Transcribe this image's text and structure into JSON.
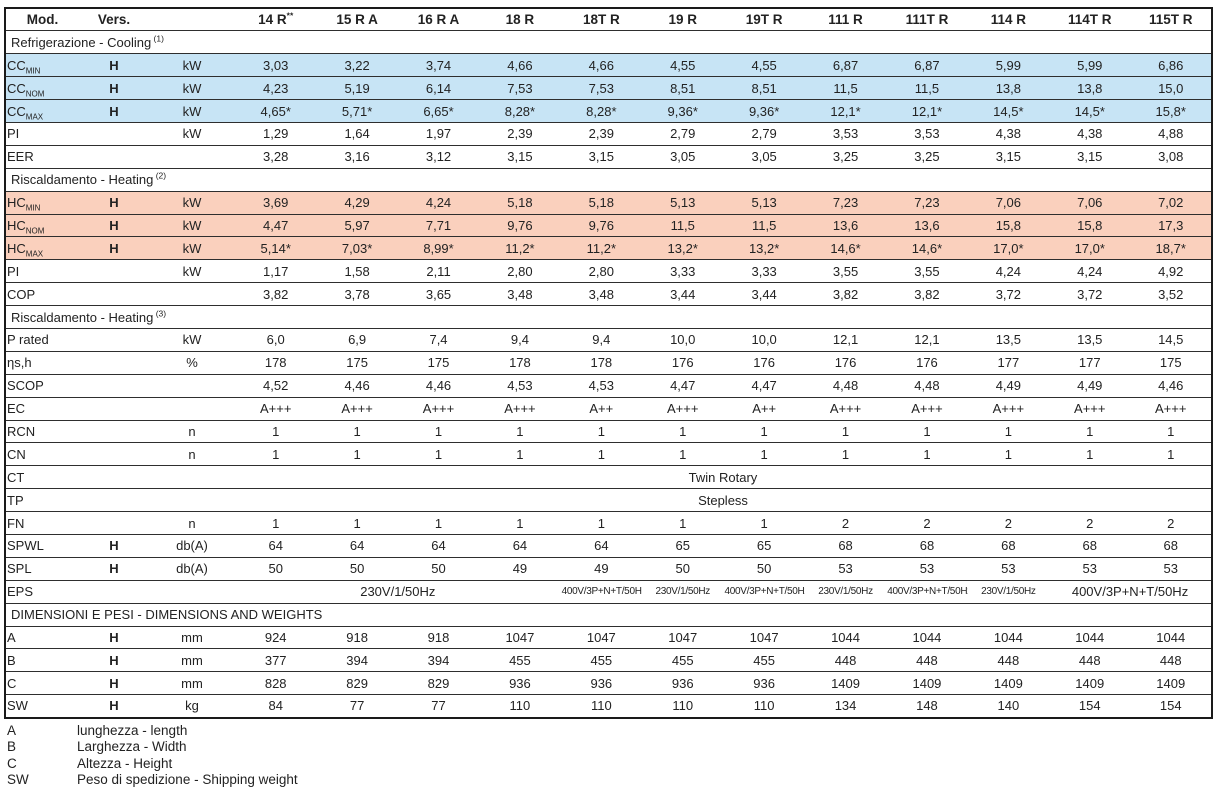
{
  "table": {
    "header": {
      "mod": "Mod.",
      "vers": "Vers.",
      "unit": ""
    },
    "models": [
      {
        "label": "14 R",
        "sup": "**"
      },
      {
        "label": "15 R A"
      },
      {
        "label": "16 R A"
      },
      {
        "label": "18 R"
      },
      {
        "label": "18T R"
      },
      {
        "label": "19 R"
      },
      {
        "label": "19T R"
      },
      {
        "label": "111 R"
      },
      {
        "label": "111T R"
      },
      {
        "label": "114 R"
      },
      {
        "label": "114T R"
      },
      {
        "label": "115T R"
      }
    ],
    "sections": [
      {
        "title": "Refrigerazione - Cooling",
        "sup": "(1)",
        "rows": [
          {
            "type": "data",
            "label": "CC",
            "sub": "MIN",
            "vers": "H",
            "unit": "kW",
            "bg": "blue",
            "values": [
              "3,03",
              "3,22",
              "3,74",
              "4,66",
              "4,66",
              "4,55",
              "4,55",
              "6,87",
              "6,87",
              "5,99",
              "5,99",
              "6,86"
            ]
          },
          {
            "type": "data",
            "label": "CC",
            "sub": "NOM",
            "vers": "H",
            "unit": "kW",
            "bg": "blue",
            "values": [
              "4,23",
              "5,19",
              "6,14",
              "7,53",
              "7,53",
              "8,51",
              "8,51",
              "11,5",
              "11,5",
              "13,8",
              "13,8",
              "15,0"
            ]
          },
          {
            "type": "data",
            "label": "CC",
            "sub": "MAX",
            "vers": "H",
            "unit": "kW",
            "bg": "blue",
            "values": [
              "4,65*",
              "5,71*",
              "6,65*",
              "8,28*",
              "8,28*",
              "9,36*",
              "9,36*",
              "12,1*",
              "12,1*",
              "14,5*",
              "14,5*",
              "15,8*"
            ]
          },
          {
            "type": "data",
            "label": "PI",
            "unit": "kW",
            "values": [
              "1,29",
              "1,64",
              "1,97",
              "2,39",
              "2,39",
              "2,79",
              "2,79",
              "3,53",
              "3,53",
              "4,38",
              "4,38",
              "4,88"
            ]
          },
          {
            "type": "data",
            "label": "EER",
            "values": [
              "3,28",
              "3,16",
              "3,12",
              "3,15",
              "3,15",
              "3,05",
              "3,05",
              "3,25",
              "3,25",
              "3,15",
              "3,15",
              "3,08"
            ]
          }
        ]
      },
      {
        "title": "Riscaldamento - Heating",
        "sup": "(2)",
        "rows": [
          {
            "type": "data",
            "label": "HC",
            "sub": "MIN",
            "vers": "H",
            "unit": "kW",
            "bg": "red",
            "values": [
              "3,69",
              "4,29",
              "4,24",
              "5,18",
              "5,18",
              "5,13",
              "5,13",
              "7,23",
              "7,23",
              "7,06",
              "7,06",
              "7,02"
            ]
          },
          {
            "type": "data",
            "label": "HC",
            "sub": "NOM",
            "vers": "H",
            "unit": "kW",
            "bg": "red",
            "values": [
              "4,47",
              "5,97",
              "7,71",
              "9,76",
              "9,76",
              "11,5",
              "11,5",
              "13,6",
              "13,6",
              "15,8",
              "15,8",
              "17,3"
            ]
          },
          {
            "type": "data",
            "label": "HC",
            "sub": "MAX",
            "vers": "H",
            "unit": "kW",
            "bg": "red",
            "values": [
              "5,14*",
              "7,03*",
              "8,99*",
              "11,2*",
              "11,2*",
              "13,2*",
              "13,2*",
              "14,6*",
              "14,6*",
              "17,0*",
              "17,0*",
              "18,7*"
            ]
          },
          {
            "type": "data",
            "label": "PI",
            "unit": "kW",
            "values": [
              "1,17",
              "1,58",
              "2,11",
              "2,80",
              "2,80",
              "3,33",
              "3,33",
              "3,55",
              "3,55",
              "4,24",
              "4,24",
              "4,92"
            ]
          },
          {
            "type": "data",
            "label": "COP",
            "values": [
              "3,82",
              "3,78",
              "3,65",
              "3,48",
              "3,48",
              "3,44",
              "3,44",
              "3,82",
              "3,82",
              "3,72",
              "3,72",
              "3,52"
            ]
          }
        ]
      },
      {
        "title": "Riscaldamento - Heating",
        "sup": "(3)",
        "rows": [
          {
            "type": "data",
            "label": "P rated",
            "unit": "kW",
            "values": [
              "6,0",
              "6,9",
              "7,4",
              "9,4",
              "9,4",
              "10,0",
              "10,0",
              "12,1",
              "12,1",
              "13,5",
              "13,5",
              "14,5"
            ]
          },
          {
            "type": "data",
            "label": "ηs,h",
            "unit": "%",
            "values": [
              "178",
              "175",
              "175",
              "178",
              "178",
              "176",
              "176",
              "176",
              "176",
              "177",
              "177",
              "175"
            ]
          },
          {
            "type": "data",
            "label": "SCOP",
            "values": [
              "4,52",
              "4,46",
              "4,46",
              "4,53",
              "4,53",
              "4,47",
              "4,47",
              "4,48",
              "4,48",
              "4,49",
              "4,49",
              "4,46"
            ]
          },
          {
            "type": "data",
            "label": "EC",
            "values": [
              "A+++",
              "A+++",
              "A+++",
              "A+++",
              "A++",
              "A+++",
              "A++",
              "A+++",
              "A+++",
              "A+++",
              "A+++",
              "A+++"
            ]
          },
          {
            "type": "data",
            "label": "RCN",
            "unit": "n",
            "values": [
              "1",
              "1",
              "1",
              "1",
              "1",
              "1",
              "1",
              "1",
              "1",
              "1",
              "1",
              "1"
            ]
          },
          {
            "type": "data",
            "label": "CN",
            "unit": "n",
            "values": [
              "1",
              "1",
              "1",
              "1",
              "1",
              "1",
              "1",
              "1",
              "1",
              "1",
              "1",
              "1"
            ]
          },
          {
            "type": "span",
            "label": "CT",
            "text": "Twin Rotary"
          },
          {
            "type": "span",
            "label": "TP",
            "text": "Stepless"
          },
          {
            "type": "data",
            "label": "FN",
            "unit": "n",
            "values": [
              "1",
              "1",
              "1",
              "1",
              "1",
              "1",
              "1",
              "2",
              "2",
              "2",
              "2",
              "2"
            ]
          },
          {
            "type": "data",
            "label": "SPWL",
            "vers": "H",
            "unit": "db(A)",
            "values": [
              "64",
              "64",
              "64",
              "64",
              "64",
              "65",
              "65",
              "68",
              "68",
              "68",
              "68",
              "68"
            ]
          },
          {
            "type": "data",
            "label": "SPL",
            "vers": "H",
            "unit": "db(A)",
            "values": [
              "50",
              "50",
              "50",
              "49",
              "49",
              "50",
              "50",
              "53",
              "53",
              "53",
              "53",
              "53"
            ]
          },
          {
            "type": "multi",
            "label": "EPS",
            "cells": [
              {
                "text": "230V/1/50Hz",
                "span": 4
              },
              {
                "text": "400V/3P+N+T/50Hz",
                "span": 1,
                "small": true
              },
              {
                "text": "230V/1/50Hz",
                "span": 1,
                "small": true
              },
              {
                "text": "400V/3P+N+T/50Hz",
                "span": 1,
                "small": true
              },
              {
                "text": "230V/1/50Hz",
                "span": 1,
                "small": true
              },
              {
                "text": "400V/3P+N+T/50Hz",
                "span": 1,
                "small": true
              },
              {
                "text": "230V/1/50Hz",
                "span": 1,
                "small": true
              },
              {
                "text": "400V/3P+N+T/50Hz",
                "span": 2
              }
            ]
          }
        ]
      },
      {
        "title": "DIMENSIONI E PESI - DIMENSIONS AND WEIGHTS",
        "rows": [
          {
            "type": "data",
            "label": "A",
            "vers": "H",
            "unit": "mm",
            "values": [
              "924",
              "918",
              "918",
              "1047",
              "1047",
              "1047",
              "1047",
              "1044",
              "1044",
              "1044",
              "1044",
              "1044"
            ]
          },
          {
            "type": "data",
            "label": "B",
            "vers": "H",
            "unit": "mm",
            "values": [
              "377",
              "394",
              "394",
              "455",
              "455",
              "455",
              "455",
              "448",
              "448",
              "448",
              "448",
              "448"
            ]
          },
          {
            "type": "data",
            "label": "C",
            "vers": "H",
            "unit": "mm",
            "values": [
              "828",
              "829",
              "829",
              "936",
              "936",
              "936",
              "936",
              "1409",
              "1409",
              "1409",
              "1409",
              "1409"
            ]
          },
          {
            "type": "data",
            "label": "SW",
            "vers": "H",
            "unit": "kg",
            "values": [
              "84",
              "77",
              "77",
              "110",
              "110",
              "110",
              "110",
              "134",
              "148",
              "140",
              "154",
              "154"
            ]
          }
        ]
      }
    ]
  },
  "legend": {
    "items": [
      {
        "key": "A",
        "text": "lunghezza - length"
      },
      {
        "key": "B",
        "text": "Larghezza - Width"
      },
      {
        "key": "C",
        "text": "Altezza - Height"
      },
      {
        "key": "SW",
        "text": "Peso di spedizione - Shipping weight"
      }
    ]
  },
  "colors": {
    "cooling_highlight": "#c7e4f5",
    "heating_highlight": "#fad0bd",
    "border": "#1a1a1a"
  }
}
